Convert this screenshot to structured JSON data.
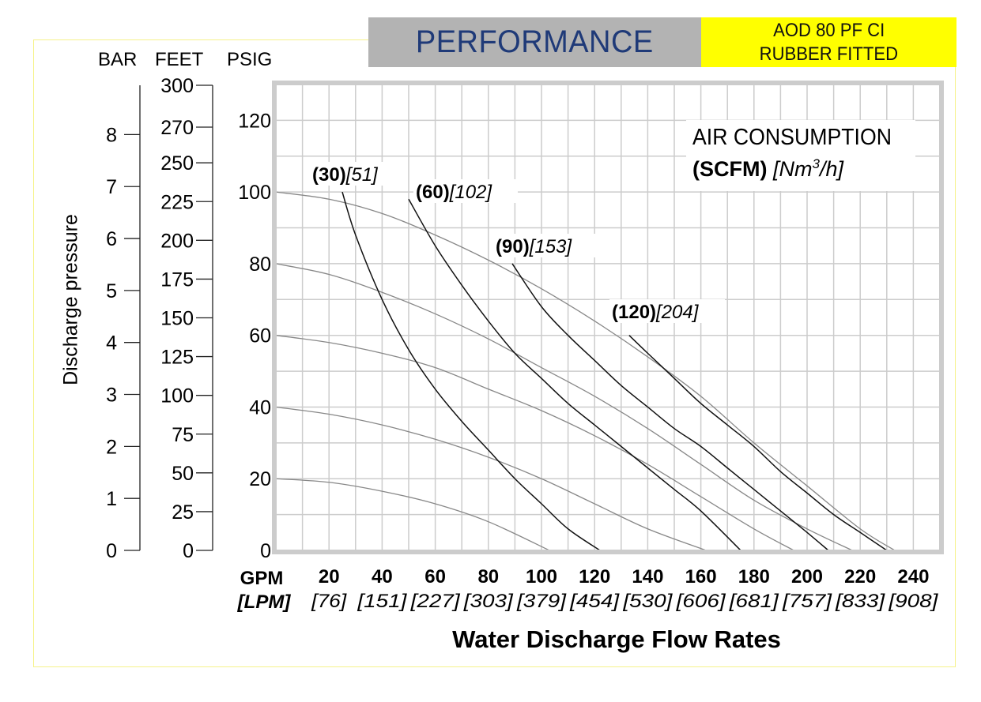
{
  "header": {
    "title": "PERFORMANCE",
    "model_line1": "AOD 80 PF CI",
    "model_line2": "RUBBER FITTED"
  },
  "colors": {
    "title_bg": "#b3b3b3",
    "title_text": "#1f3a78",
    "model_bg": "#ffff00",
    "frame_outline": "#f6f28a",
    "plot_border": "#cccccc",
    "grid": "#cccccc",
    "pressure_curves": "#888888",
    "air_curves": "#111111"
  },
  "axes_units": {
    "bar": "BAR",
    "feet": "FEET",
    "psig": "PSIG"
  },
  "legend": {
    "line1": "AIR CONSUMPTION",
    "line2_bold": "(SCFM)",
    "line2_italic_pre": "[Nm",
    "line2_sup": "3",
    "line2_italic_post": "/h]"
  },
  "chart_data": {
    "type": "line",
    "title": "PERFORMANCE",
    "xlabel": "Water Discharge Flow Rates",
    "ylabel": "Discharge pressure",
    "xlim": [
      0,
      250
    ],
    "ylim": [
      0,
      130
    ],
    "grid": true,
    "x_unit_primary": "GPM",
    "x_unit_secondary": "[LPM]",
    "x_ticks": [
      20,
      40,
      60,
      80,
      100,
      120,
      140,
      160,
      180,
      200,
      220,
      240
    ],
    "x_tick_labels_lpm": [
      "[76]",
      "[151]",
      "[227]",
      "[303]",
      "[379]",
      "[454]",
      "[530]",
      "[606]",
      "[681]",
      "[757]",
      "[833]",
      "[908]"
    ],
    "y_ticks_psig": [
      0,
      20,
      40,
      60,
      80,
      100,
      120
    ],
    "y_ticks_bar": [
      0,
      1,
      2,
      3,
      4,
      5,
      6,
      7,
      8
    ],
    "y_ticks_feet": [
      0,
      25,
      50,
      75,
      100,
      125,
      150,
      175,
      200,
      225,
      250,
      270,
      300
    ],
    "legend_title": "AIR CONSUMPTION (SCFM) [Nm3/h]",
    "legend_position": "top-right",
    "pressure_series": [
      {
        "name": "100 psig",
        "x": [
          0,
          20,
          40,
          60,
          80,
          100,
          120,
          140,
          160,
          180,
          200,
          220,
          233
        ],
        "y": [
          100,
          98,
          94,
          88,
          81,
          73,
          64,
          54,
          43,
          30,
          18,
          6,
          0
        ]
      },
      {
        "name": "80 psig",
        "x": [
          0,
          20,
          40,
          60,
          80,
          100,
          120,
          140,
          160,
          180,
          200,
          217
        ],
        "y": [
          80,
          77,
          72,
          66,
          59,
          51,
          43,
          34,
          24,
          14,
          6,
          0
        ]
      },
      {
        "name": "60 psig",
        "x": [
          0,
          20,
          40,
          60,
          80,
          100,
          120,
          140,
          160,
          180,
          195
        ],
        "y": [
          60,
          58,
          55,
          51,
          45,
          39,
          32,
          24,
          15,
          6,
          0
        ]
      },
      {
        "name": "40 psig",
        "x": [
          0,
          20,
          40,
          60,
          80,
          100,
          120,
          140,
          162
        ],
        "y": [
          40,
          38,
          35,
          31,
          26,
          20,
          13,
          6,
          0
        ]
      },
      {
        "name": "20 psig",
        "x": [
          0,
          20,
          40,
          60,
          80,
          103
        ],
        "y": [
          20,
          19,
          16.5,
          13,
          8,
          0
        ]
      }
    ],
    "air_series": [
      {
        "name": "(30)",
        "label_bold": "(30)",
        "label_italic": "[51]",
        "x": [
          25,
          30,
          40,
          50,
          60,
          70,
          80,
          90,
          100,
          110,
          122
        ],
        "y": [
          100,
          88,
          70,
          56,
          45,
          36,
          28,
          20,
          13,
          6,
          0
        ]
      },
      {
        "name": "(60)",
        "label_bold": "(60)",
        "label_italic": "[102]",
        "x": [
          50,
          60,
          70,
          80,
          90,
          100,
          110,
          120,
          130,
          140,
          150,
          160,
          175
        ],
        "y": [
          98,
          85,
          74,
          64,
          55,
          48,
          41,
          35,
          29,
          23,
          17,
          11,
          0
        ]
      },
      {
        "name": "(90)",
        "label_bold": "(90)",
        "label_italic": "[153]",
        "x": [
          89,
          100,
          110,
          120,
          130,
          140,
          150,
          160,
          170,
          180,
          190,
          200,
          208
        ],
        "y": [
          80,
          68,
          60,
          53,
          46,
          40,
          34,
          29,
          23,
          17,
          11,
          5,
          0
        ]
      },
      {
        "name": "(120)",
        "label_bold": "(120)",
        "label_italic": "[204]",
        "x": [
          133,
          140,
          150,
          160,
          170,
          180,
          190,
          200,
          210,
          220,
          230
        ],
        "y": [
          60,
          55,
          48,
          41,
          35,
          29,
          22,
          16,
          10,
          5,
          0
        ]
      }
    ]
  }
}
